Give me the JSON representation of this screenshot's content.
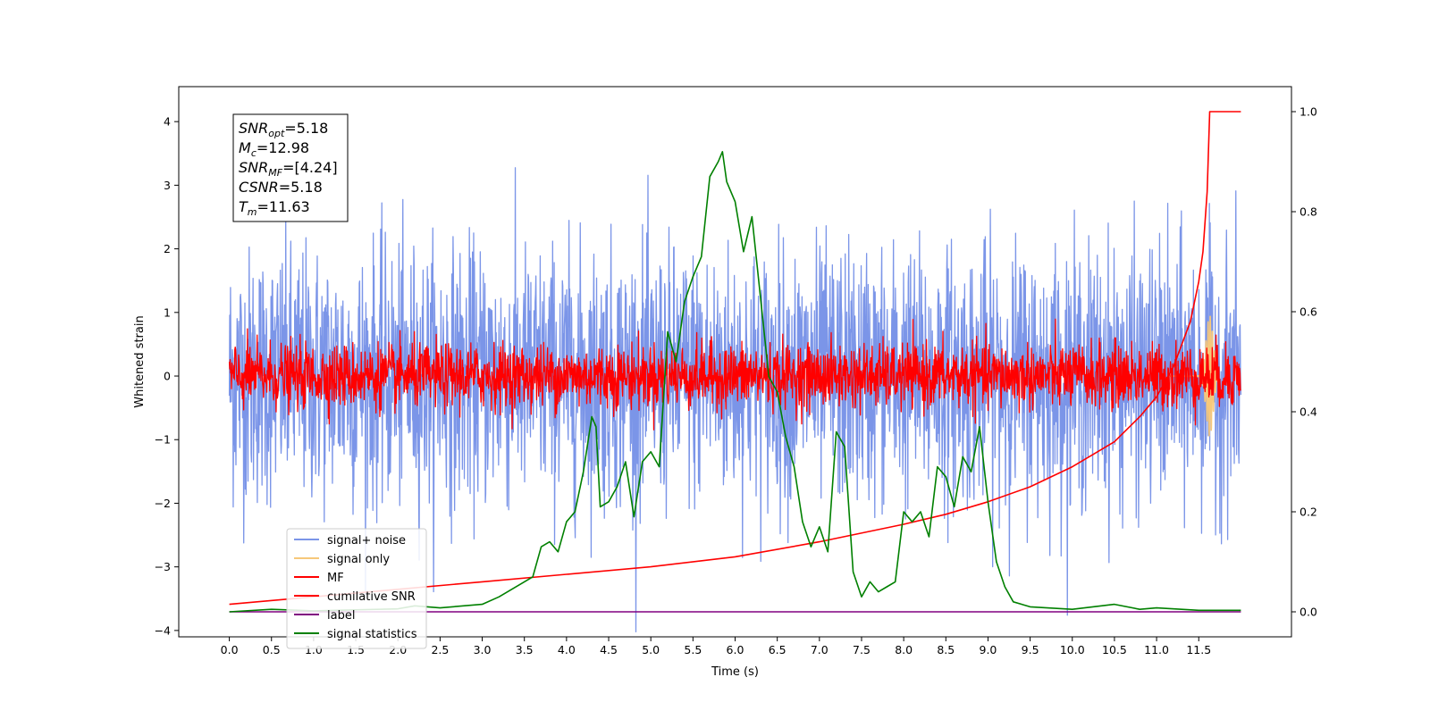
{
  "chart_data": {
    "type": "line",
    "xlabel": "Time (s)",
    "ylabel": "Whitened strain",
    "ylabel_right": "",
    "xlim": [
      -0.6,
      12.6
    ],
    "ylim": [
      -4.1,
      4.55
    ],
    "ylim_right": [
      -0.05,
      1.05
    ],
    "x_ticks": [
      "0.0",
      "0.5",
      "1.0",
      "1.5",
      "2.0",
      "2.5",
      "3.0",
      "3.5",
      "4.0",
      "4.5",
      "5.0",
      "5.5",
      "6.0",
      "6.5",
      "7.0",
      "7.5",
      "8.0",
      "8.5",
      "9.0",
      "9.5",
      "10.0",
      "10.5",
      "11.0",
      "11.5"
    ],
    "y_ticks": [
      "−4",
      "−3",
      "−2",
      "−1",
      "0",
      "1",
      "2",
      "3",
      "4"
    ],
    "y_ticks_right": [
      "0.0",
      "0.2",
      "0.4",
      "0.6",
      "0.8",
      "1.0"
    ],
    "grid": false,
    "annotation": {
      "lines": [
        {
          "main": "SNR",
          "sub": "opt",
          "rest": "=5.18"
        },
        {
          "main": "M",
          "sub": "c",
          "rest": "=12.98"
        },
        {
          "main": "SNR",
          "sub": "MF",
          "rest": "=[4.24]"
        },
        {
          "main": "CSNR",
          "sub": "",
          "rest": "=5.18"
        },
        {
          "main": "T",
          "sub": "m",
          "rest": "=11.63"
        }
      ],
      "placement": "top-left"
    },
    "legend_placement": "lower-left",
    "series": [
      {
        "name": "signal+ noise",
        "color": "#7b95e8",
        "axis": "left",
        "style": "noise",
        "amplitude": 1.0,
        "x_range": [
          0.0,
          12.0
        ]
      },
      {
        "name": "signal only",
        "color": "#f7c87a",
        "axis": "left",
        "style": "chirp",
        "peak_time": 11.63,
        "peak": 0.95
      },
      {
        "name": "MF",
        "color": "#ff0000",
        "axis": "left",
        "style": "noise",
        "amplitude": 0.25,
        "x_range": [
          0.0,
          12.0
        ]
      },
      {
        "name": "cumilative SNR",
        "color": "#ff0000",
        "axis": "right",
        "x": [
          0.0,
          1.0,
          2.0,
          3.0,
          4.0,
          5.0,
          6.0,
          7.0,
          8.0,
          8.5,
          9.0,
          9.5,
          10.0,
          10.5,
          10.8,
          11.0,
          11.2,
          11.4,
          11.5,
          11.55,
          11.6,
          11.63,
          12.0
        ],
        "y": [
          0.015,
          0.03,
          0.045,
          0.06,
          0.075,
          0.09,
          0.11,
          0.14,
          0.175,
          0.195,
          0.22,
          0.25,
          0.29,
          0.34,
          0.39,
          0.43,
          0.49,
          0.58,
          0.66,
          0.72,
          0.84,
          1.0,
          1.0
        ]
      },
      {
        "name": "label",
        "color": "#800080",
        "axis": "right",
        "x": [
          0.0,
          12.0
        ],
        "y": [
          0.0,
          0.0
        ]
      },
      {
        "name": "signal statistics",
        "color": "#008000",
        "axis": "right",
        "x": [
          0.0,
          0.5,
          1.0,
          1.5,
          2.0,
          2.2,
          2.5,
          3.0,
          3.2,
          3.5,
          3.6,
          3.7,
          3.8,
          3.9,
          4.0,
          4.1,
          4.2,
          4.3,
          4.35,
          4.4,
          4.5,
          4.6,
          4.7,
          4.8,
          4.9,
          5.0,
          5.1,
          5.2,
          5.3,
          5.4,
          5.5,
          5.6,
          5.7,
          5.8,
          5.85,
          5.9,
          6.0,
          6.1,
          6.2,
          6.3,
          6.4,
          6.5,
          6.6,
          6.7,
          6.8,
          6.9,
          7.0,
          7.1,
          7.2,
          7.3,
          7.4,
          7.5,
          7.6,
          7.7,
          7.8,
          7.9,
          8.0,
          8.1,
          8.2,
          8.3,
          8.4,
          8.5,
          8.6,
          8.7,
          8.8,
          8.9,
          9.0,
          9.1,
          9.2,
          9.3,
          9.5,
          10.0,
          10.5,
          10.8,
          11.0,
          11.5,
          12.0
        ],
        "y": [
          0.0,
          0.005,
          0.002,
          0.004,
          0.006,
          0.012,
          0.008,
          0.015,
          0.03,
          0.06,
          0.07,
          0.13,
          0.14,
          0.12,
          0.18,
          0.2,
          0.28,
          0.39,
          0.37,
          0.21,
          0.22,
          0.25,
          0.3,
          0.19,
          0.3,
          0.32,
          0.29,
          0.56,
          0.5,
          0.62,
          0.67,
          0.71,
          0.87,
          0.9,
          0.92,
          0.86,
          0.82,
          0.72,
          0.79,
          0.63,
          0.47,
          0.44,
          0.35,
          0.29,
          0.18,
          0.13,
          0.17,
          0.12,
          0.36,
          0.33,
          0.08,
          0.03,
          0.06,
          0.04,
          0.05,
          0.06,
          0.2,
          0.18,
          0.2,
          0.15,
          0.29,
          0.27,
          0.21,
          0.31,
          0.28,
          0.37,
          0.22,
          0.1,
          0.05,
          0.02,
          0.01,
          0.005,
          0.015,
          0.005,
          0.008,
          0.003,
          0.003
        ]
      }
    ]
  }
}
